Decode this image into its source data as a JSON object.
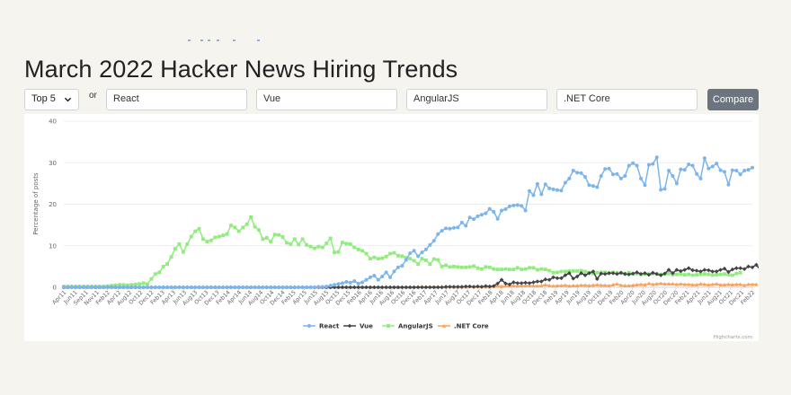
{
  "page": {
    "title": "March 2022 Hacker News Hiring Trends"
  },
  "controls": {
    "select_value": "Top 5",
    "or_label": "or",
    "inputs": [
      "React",
      "Vue",
      "AngularJS",
      ".NET Core"
    ],
    "compare_label": "Compare"
  },
  "icons": {
    "select": "chevron-down-icon"
  },
  "colors": {
    "react": "#7cb5ec",
    "vue": "#434348",
    "angular": "#90ed7d",
    "netcore": "#f7a35c"
  },
  "chart_data": {
    "type": "line",
    "title": "",
    "xlabel": "",
    "ylabel": "Percentage of posts",
    "ylim": [
      0,
      40
    ],
    "yticks": [
      0,
      10,
      20,
      30,
      40
    ],
    "legend_position": "bottom-center",
    "credits": "Highcharts.com",
    "x_tick_labels": [
      "Apr11",
      "Jun11",
      "Sep11",
      "Nov11",
      "Feb12",
      "Apr12",
      "Aug12",
      "Oct12",
      "Dec12",
      "Feb13",
      "Apr13",
      "Jun13",
      "Aug13",
      "Oct13",
      "Dec13",
      "Feb14",
      "Apr14",
      "Jun14",
      "Aug14",
      "Oct14",
      "Dec14",
      "Feb15",
      "Apr15",
      "Jun15",
      "Aug15",
      "Oct15",
      "Dec15",
      "Feb16",
      "Apr16",
      "Jun16",
      "Aug16",
      "Oct16",
      "Dec16",
      "Feb17",
      "Apr17",
      "Jun17",
      "Aug17",
      "Oct17",
      "Dec17",
      "Feb18",
      "Apr18",
      "Jun18",
      "Aug18",
      "Oct18",
      "Dec18",
      "Feb19",
      "Apr19",
      "Jun19",
      "Aug19",
      "Oct19",
      "Dec19",
      "Feb20",
      "Apr20",
      "Jun20",
      "Aug20",
      "Oct20",
      "Dec20",
      "Feb21",
      "Apr21",
      "Jun21",
      "Aug21",
      "Oct21",
      "Dec21",
      "Feb22"
    ],
    "series": [
      {
        "name": "React",
        "marker": "circle",
        "color": "#7cb5ec",
        "values": [
          0,
          0,
          0,
          0,
          0,
          0,
          0,
          0,
          0,
          0,
          0,
          0,
          0,
          0,
          0,
          0,
          0,
          0,
          0,
          0,
          0,
          0,
          0,
          0,
          0,
          0,
          0,
          0,
          0,
          0,
          0,
          0,
          0,
          0,
          0,
          0,
          0,
          0,
          0,
          0,
          0,
          0,
          0,
          0,
          0,
          0,
          0,
          0,
          0,
          0,
          0,
          0,
          0,
          0,
          0,
          0,
          0,
          0,
          0,
          0,
          0,
          0,
          0,
          0,
          0.1,
          0.1,
          0.2,
          0.4,
          0.6,
          0.8,
          1.0,
          1.3,
          1.1,
          1.5,
          0.9,
          1.2,
          1.8,
          2.4,
          2.8,
          1.8,
          2.6,
          3.6,
          2.4,
          3.8,
          4.8,
          5.2,
          6.6,
          8.2,
          8.8,
          7.5,
          8.4,
          9.1,
          10.2,
          11.2,
          12.8,
          13.6,
          14.2,
          14.1,
          14.3,
          14.4,
          15.6,
          14.8,
          16.8,
          16.4,
          17.1,
          17.5,
          17.8,
          18.9,
          18.2,
          16.5,
          18.5,
          18.8,
          19.5,
          19.7,
          19.8,
          19.6,
          18.5,
          23.2,
          22.2,
          24.9,
          22.4,
          24.8,
          23.8,
          23.6,
          23.4,
          23.3,
          25.2,
          26.2,
          28.1,
          27.6,
          27.5,
          26.6,
          24.6,
          24.4,
          24.1,
          26.8,
          28.5,
          28.6,
          27.2,
          27.3,
          26.2,
          26.8,
          29.3,
          29.9,
          29.3,
          26.2,
          24.6,
          29.5,
          29.7,
          31.3,
          23.5,
          23.7,
          28.1,
          26.8,
          25.0,
          28.4,
          28.3,
          29.6,
          29.3,
          27.3,
          26.2,
          31.1,
          28.6,
          29.1,
          29.8,
          28.2,
          27.8,
          24.7,
          28.2,
          28.1,
          27.2,
          28.1,
          28.3,
          28.8
        ]
      },
      {
        "name": "Vue",
        "marker": "diamond",
        "color": "#434348",
        "values": [
          0,
          0,
          0,
          0,
          0,
          0,
          0,
          0,
          0,
          0,
          0,
          0,
          0,
          0,
          0,
          0,
          0,
          0,
          0,
          0,
          0,
          0,
          0,
          0,
          0,
          0,
          0,
          0,
          0,
          0,
          0,
          0,
          0,
          0,
          0,
          0,
          0,
          0,
          0,
          0,
          0,
          0,
          0,
          0,
          0,
          0,
          0,
          0,
          0,
          0,
          0,
          0,
          0,
          0,
          0,
          0,
          0,
          0,
          0,
          0,
          0,
          0,
          0,
          0,
          0,
          0,
          0,
          0,
          0,
          0,
          0,
          0,
          0,
          0,
          0,
          0,
          0,
          0,
          0,
          0,
          0,
          0,
          0,
          0,
          0,
          0,
          0,
          0,
          0,
          0,
          0,
          0,
          0,
          0,
          0,
          0,
          0.1,
          0.1,
          0.1,
          0.1,
          0.1,
          0.2,
          0.2,
          0.1,
          0.2,
          0.1,
          0.3,
          0.2,
          0.3,
          0.9,
          1.8,
          0.9,
          0.7,
          1.2,
          1.0,
          1.0,
          1.1,
          1.0,
          1.2,
          1.4,
          1.4,
          1.9,
          1.8,
          2.4,
          2.2,
          2.2,
          2.9,
          3.4,
          2.1,
          2.6,
          3.4,
          2.9,
          3.4,
          3.8,
          2.0,
          3.3,
          3.2,
          3.4,
          3.4,
          3.2,
          3.5,
          3.2,
          3.1,
          3.3,
          3.6,
          3.2,
          3.4,
          3.0,
          3.5,
          3.2,
          2.9,
          3.3,
          4.2,
          3.4,
          4.2,
          3.9,
          4.2,
          4.6,
          4.1,
          4.0,
          3.8,
          4.2,
          4.1,
          3.8,
          3.8,
          4.2,
          4.5,
          3.7,
          4.3,
          4.6,
          4.6,
          4.4,
          5.0,
          4.8,
          5.4,
          4.2,
          4.6,
          5.2,
          4.9,
          4.5
        ]
      },
      {
        "name": "AngularJS",
        "marker": "square",
        "color": "#90ed7d",
        "values": [
          0.2,
          0.2,
          0.2,
          0.2,
          0.2,
          0.2,
          0.2,
          0.2,
          0.2,
          0.2,
          0.2,
          0.3,
          0.4,
          0.5,
          0.6,
          0.6,
          0.5,
          0.6,
          0.7,
          0.8,
          1.0,
          0.8,
          2.0,
          3.2,
          3.6,
          5.0,
          5.6,
          7.3,
          9.3,
          10.4,
          8.5,
          10.4,
          12.2,
          13.5,
          14.1,
          11.6,
          11.0,
          11.3,
          12.0,
          12.2,
          12.5,
          12.8,
          14.9,
          14.4,
          13.5,
          14.4,
          15.2,
          16.9,
          14.6,
          13.8,
          11.6,
          11.9,
          11.0,
          12.7,
          12.6,
          12.1,
          10.7,
          10.4,
          11.6,
          10.3,
          11.6,
          10.2,
          9.8,
          9.4,
          9.8,
          9.6,
          10.6,
          11.8,
          8.4,
          8.5,
          10.8,
          10.5,
          10.4,
          9.6,
          9.1,
          8.8,
          8.1,
          6.9,
          7.2,
          6.9,
          7.0,
          7.4,
          8.1,
          8.3,
          7.6,
          7.5,
          7.1,
          6.9,
          6.4,
          5.6,
          6.9,
          6.5,
          5.6,
          6.8,
          6.6,
          5.0,
          5.3,
          4.9,
          5.0,
          4.9,
          4.8,
          4.8,
          4.9,
          5.1,
          4.6,
          4.4,
          4.9,
          4.8,
          4.4,
          4.3,
          4.3,
          4.4,
          4.3,
          4.3,
          4.7,
          4.3,
          4.4,
          4.7,
          4.7,
          4.2,
          4.4,
          4.3,
          4.0,
          3.5,
          3.6,
          3.8,
          3.8,
          3.9,
          3.9,
          3.9,
          4.0,
          3.8,
          3.5,
          3.3,
          3.5,
          3.6,
          3.6,
          3.4,
          3.6,
          3.5,
          3.4,
          3.3,
          3.5,
          3.2,
          3.3,
          3.1,
          3.2,
          3.2,
          3.3,
          3.2,
          3.1,
          3.2,
          3.3,
          3.0,
          3.1,
          3.2,
          3.0,
          3.1,
          2.9,
          3.0,
          3.1,
          3.2,
          3.1,
          2.9,
          3.0,
          3.1,
          3.2,
          3.0,
          2.9,
          3.3,
          3.5
        ]
      },
      {
        "name": ".NET Core",
        "marker": "triangle",
        "color": "#f7a35c",
        "values": [
          0,
          0,
          0,
          0,
          0,
          0,
          0,
          0,
          0,
          0,
          0,
          0,
          0,
          0,
          0,
          0,
          0,
          0,
          0,
          0,
          0,
          0,
          0,
          0,
          0,
          0,
          0,
          0,
          0,
          0,
          0,
          0,
          0,
          0,
          0,
          0,
          0,
          0,
          0,
          0,
          0,
          0,
          0,
          0,
          0,
          0,
          0,
          0,
          0,
          0,
          0,
          0,
          0,
          0,
          0,
          0,
          0,
          0,
          0,
          0,
          0,
          0,
          0,
          0,
          0,
          0,
          0,
          0,
          0,
          0,
          0,
          0,
          0,
          0,
          0,
          0,
          0,
          0,
          0,
          0,
          0,
          0,
          0,
          0,
          0,
          0,
          0,
          0,
          0,
          0.1,
          0.1,
          0.1,
          0.1,
          0.1,
          0.1,
          0.1,
          0.1,
          0.2,
          0.1,
          0.1,
          0.1,
          0.1,
          0.2,
          0.2,
          0.2,
          0.2,
          0.1,
          0.1,
          0.2,
          0.3,
          0.2,
          0.3,
          0.3,
          0.4,
          0.3,
          0.4,
          0.4,
          0.4,
          0.4,
          0.3,
          0.4,
          0.6,
          0.4,
          0.3,
          0.4,
          0.4,
          0.5,
          0.3,
          0.4,
          0.4,
          0.5,
          0.5,
          0.4,
          0.5,
          0.6,
          0.5,
          0.5,
          0.4,
          0.6,
          0.8,
          0.5,
          0.4,
          0.4,
          0.5,
          0.6,
          0.7,
          0.6,
          0.9,
          0.7,
          0.8,
          0.9,
          0.8,
          0.8,
          0.8,
          0.7,
          0.8,
          0.7,
          0.7,
          0.6,
          0.6,
          0.8,
          0.7,
          0.6,
          0.7,
          0.8,
          0.6,
          0.6,
          0.7,
          0.6,
          0.7,
          0.7,
          0.5,
          0.7,
          0.7,
          0.7
        ]
      }
    ]
  }
}
